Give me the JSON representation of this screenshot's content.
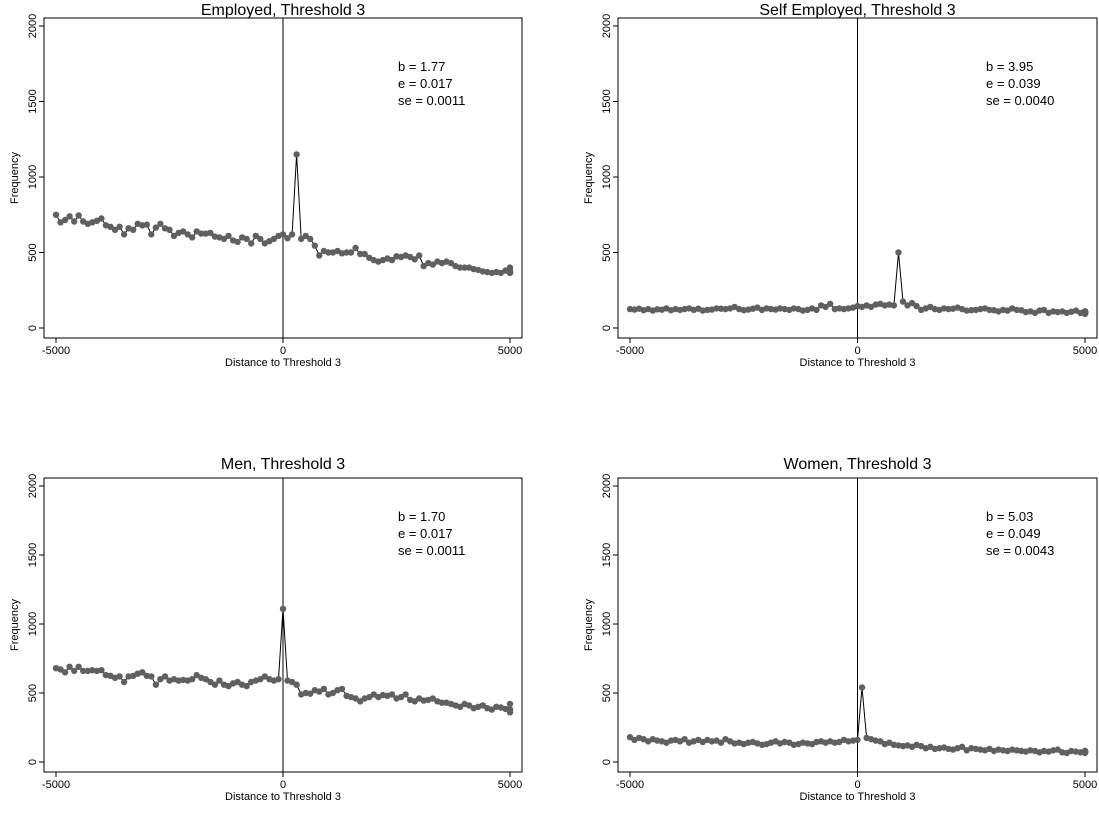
{
  "chart_data": [
    {
      "type": "line",
      "title": "Employed, Threshold 3",
      "xlabel": "Distance to Threshold 3",
      "ylabel": "Frequency",
      "xlim": [
        -5000,
        5000
      ],
      "ylim": [
        0,
        2000
      ],
      "xticks": [
        "-5000",
        "0",
        "5000"
      ],
      "yticks": [
        "0",
        "500",
        "1000",
        "1500",
        "2000"
      ],
      "grid": false,
      "annotation": [
        "b = 1.77",
        "e = 0.017",
        "se = 0.0011"
      ],
      "marker_color": "#606060",
      "series": [
        {
          "x_start": -5000,
          "x_step": 100,
          "values": [
            750,
            700,
            715,
            740,
            705,
            745,
            705,
            690,
            700,
            710,
            725,
            680,
            670,
            650,
            670,
            620,
            660,
            650,
            690,
            680,
            685,
            620,
            665,
            690,
            660,
            650,
            610,
            630,
            640,
            620,
            600,
            640,
            625,
            625,
            630,
            605,
            600,
            590,
            610,
            580,
            570,
            600,
            590,
            560,
            610,
            590,
            560,
            575,
            590,
            610,
            620,
            595,
            620,
            1150,
            590,
            610,
            590,
            545,
            480,
            510,
            500,
            500,
            510,
            495,
            500,
            500,
            530,
            490,
            490,
            465,
            450,
            440,
            450,
            460,
            450,
            475,
            470,
            480,
            470,
            455,
            480,
            410,
            430,
            420,
            440,
            430,
            440,
            430,
            410,
            400,
            400,
            400,
            390,
            385,
            375,
            370,
            365,
            370,
            365,
            380,
            370,
            365,
            365,
            380,
            400
          ]
        }
      ]
    },
    {
      "type": "line",
      "title": "Self Employed, Threshold 3",
      "xlabel": "Distance to Threshold 3",
      "ylabel": "Frequency",
      "xlim": [
        -5000,
        5000
      ],
      "ylim": [
        0,
        2000
      ],
      "xticks": [
        "-5000",
        "0",
        "5000"
      ],
      "yticks": [
        "0",
        "500",
        "1000",
        "1500",
        "2000"
      ],
      "grid": false,
      "annotation": [
        "b = 3.95",
        "e = 0.039",
        "se = 0.0040"
      ],
      "marker_color": "#606060",
      "series": [
        {
          "x_start": -5000,
          "x_step": 100,
          "values": [
            125,
            122,
            128,
            118,
            125,
            115,
            124,
            121,
            130,
            118,
            125,
            120,
            125,
            130,
            120,
            128,
            115,
            120,
            122,
            130,
            128,
            125,
            130,
            140,
            125,
            118,
            122,
            128,
            135,
            120,
            130,
            125,
            122,
            130,
            125,
            120,
            130,
            125,
            115,
            120,
            130,
            120,
            150,
            140,
            160,
            125,
            130,
            125,
            130,
            135,
            145,
            140,
            150,
            140,
            155,
            160,
            150,
            155,
            150,
            500,
            175,
            150,
            165,
            145,
            120,
            130,
            140,
            125,
            120,
            130,
            125,
            128,
            135,
            125,
            115,
            118,
            120,
            125,
            130,
            120,
            118,
            110,
            120,
            115,
            130,
            120,
            118,
            105,
            110,
            100,
            115,
            120,
            100,
            110,
            105,
            110,
            100,
            108,
            115,
            100,
            105,
            110,
            95,
            100,
            108,
            105,
            110,
            100,
            95,
            100,
            110,
            105,
            100,
            95,
            100,
            105,
            110,
            100,
            108,
            100,
            105
          ]
        }
      ]
    },
    {
      "type": "line",
      "title": "Men, Threshold 3",
      "xlabel": "Distance to Threshold 3",
      "ylabel": "Frequency",
      "xlim": [
        -5000,
        5000
      ],
      "ylim": [
        0,
        2000
      ],
      "xticks": [
        "-5000",
        "0",
        "5000"
      ],
      "yticks": [
        "0",
        "500",
        "1000",
        "1500",
        "2000"
      ],
      "grid": false,
      "annotation": [
        "b = 1.70",
        "e = 0.017",
        "se = 0.0011"
      ],
      "marker_color": "#606060",
      "series": [
        {
          "x_start": -5000,
          "x_step": 100,
          "values": [
            680,
            670,
            650,
            690,
            660,
            690,
            660,
            660,
            665,
            660,
            665,
            630,
            625,
            610,
            620,
            580,
            620,
            625,
            640,
            650,
            625,
            620,
            560,
            600,
            620,
            590,
            600,
            590,
            595,
            590,
            600,
            630,
            610,
            600,
            580,
            560,
            590,
            560,
            550,
            570,
            580,
            560,
            550,
            580,
            590,
            600,
            620,
            600,
            590,
            600,
            1110,
            590,
            580,
            560,
            490,
            500,
            495,
            520,
            510,
            530,
            490,
            500,
            520,
            530,
            480,
            470,
            460,
            440,
            460,
            470,
            490,
            470,
            485,
            480,
            490,
            460,
            470,
            490,
            450,
            440,
            460,
            445,
            450,
            460,
            440,
            430,
            430,
            420,
            410,
            400,
            420,
            410,
            390,
            400,
            410,
            390,
            380,
            400,
            395,
            385,
            380,
            360,
            380,
            420
          ]
        }
      ]
    },
    {
      "type": "line",
      "title": "Women, Threshold 3",
      "xlabel": "Distance to Threshold 3",
      "ylabel": "Frequency",
      "xlim": [
        -5000,
        5000
      ],
      "ylim": [
        0,
        2000
      ],
      "xticks": [
        "-5000",
        "0",
        "5000"
      ],
      "yticks": [
        "0",
        "500",
        "1000",
        "1500",
        "2000"
      ],
      "grid": false,
      "annotation": [
        "b = 5.03",
        "e = 0.049",
        "se = 0.0043"
      ],
      "marker_color": "#606060",
      "series": [
        {
          "x_start": -5000,
          "x_step": 100,
          "values": [
            180,
            160,
            175,
            165,
            150,
            165,
            155,
            150,
            140,
            155,
            160,
            150,
            165,
            140,
            150,
            160,
            145,
            160,
            150,
            155,
            140,
            165,
            150,
            135,
            140,
            130,
            140,
            145,
            135,
            125,
            130,
            140,
            150,
            135,
            145,
            140,
            125,
            130,
            140,
            135,
            130,
            145,
            150,
            140,
            150,
            140,
            145,
            160,
            150,
            155,
            160,
            540,
            175,
            165,
            155,
            150,
            130,
            140,
            125,
            120,
            115,
            120,
            110,
            125,
            115,
            100,
            110,
            95,
            100,
            105,
            95,
            90,
            100,
            110,
            85,
            100,
            95,
            90,
            85,
            95,
            80,
            90,
            85,
            80,
            90,
            85,
            80,
            75,
            85,
            80,
            70,
            80,
            75,
            85,
            90,
            70,
            65,
            80,
            75,
            70,
            80,
            75,
            70,
            75,
            80,
            70,
            75,
            65,
            80,
            70
          ]
        }
      ]
    }
  ]
}
